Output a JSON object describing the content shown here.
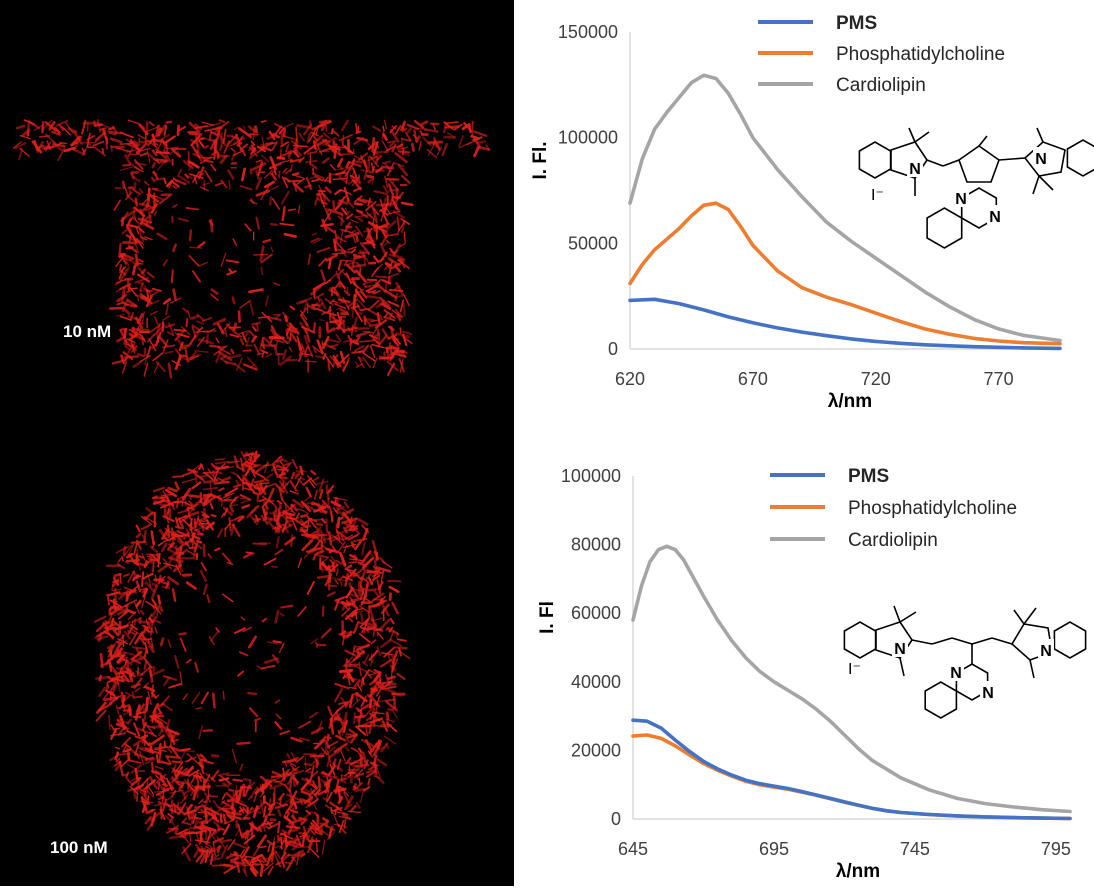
{
  "micrographs": [
    {
      "label": "10 nM"
    },
    {
      "label": "100 nM"
    }
  ],
  "colors": {
    "PMS": "#4472c4",
    "Phosphatidylcholine": "#ed7d31",
    "Cardiolipin": "#a5a5a5",
    "fluorescence": "#e0201c"
  },
  "chart_data": [
    {
      "type": "line",
      "xlabel": "λ/nm",
      "ylabel": "I. Fl.",
      "xlim": [
        620,
        795
      ],
      "ylim": [
        0,
        150000
      ],
      "xticks": [
        620,
        670,
        720,
        770
      ],
      "yticks": [
        0,
        50000,
        100000,
        150000
      ],
      "grid": false,
      "legend_position": "top-right",
      "series": [
        {
          "name": "PMS",
          "x": [
            620,
            630,
            640,
            650,
            660,
            670,
            680,
            690,
            700,
            710,
            720,
            730,
            740,
            750,
            760,
            770,
            780,
            795
          ],
          "y": [
            23000,
            23500,
            21500,
            18500,
            15200,
            12400,
            10000,
            8000,
            6300,
            4800,
            3600,
            2700,
            2000,
            1500,
            1100,
            800,
            500,
            300
          ]
        },
        {
          "name": "Phosphatidylcholine",
          "x": [
            620,
            625,
            630,
            635,
            640,
            645,
            650,
            655,
            660,
            665,
            670,
            680,
            690,
            700,
            710,
            720,
            730,
            740,
            750,
            760,
            770,
            780,
            795
          ],
          "y": [
            31000,
            40000,
            47000,
            52000,
            57000,
            63000,
            68000,
            69000,
            66000,
            58000,
            49000,
            37000,
            29000,
            24500,
            21000,
            17000,
            13000,
            9500,
            7000,
            5000,
            3800,
            3000,
            2500
          ]
        },
        {
          "name": "Cardiolipin",
          "x": [
            620,
            625,
            630,
            635,
            640,
            645,
            650,
            655,
            660,
            665,
            670,
            680,
            690,
            700,
            710,
            720,
            730,
            740,
            750,
            760,
            770,
            780,
            795
          ],
          "y": [
            69000,
            90000,
            104000,
            112000,
            119000,
            126000,
            129500,
            128000,
            121000,
            111000,
            100000,
            85000,
            72000,
            60000,
            51000,
            43000,
            35000,
            27000,
            20000,
            14000,
            9500,
            6500,
            4000
          ]
        }
      ]
    },
    {
      "type": "line",
      "xlabel": "λ/nm",
      "ylabel": "I. Fl",
      "xlim": [
        645,
        800
      ],
      "ylim": [
        0,
        100000
      ],
      "xticks": [
        645,
        695,
        745,
        795
      ],
      "yticks": [
        0,
        20000,
        40000,
        60000,
        80000,
        100000
      ],
      "grid": false,
      "legend_position": "top-right",
      "series": [
        {
          "name": "PMS",
          "x": [
            645,
            650,
            655,
            660,
            665,
            670,
            675,
            680,
            685,
            690,
            695,
            700,
            705,
            710,
            715,
            720,
            725,
            730,
            735,
            740,
            750,
            760,
            770,
            780,
            790,
            800
          ],
          "y": [
            28800,
            28500,
            26500,
            23000,
            19700,
            16800,
            14600,
            12800,
            11300,
            10300,
            9600,
            8900,
            8000,
            7000,
            6000,
            5000,
            4000,
            3100,
            2400,
            1900,
            1300,
            900,
            600,
            400,
            250,
            150
          ]
        },
        {
          "name": "Phosphatidylcholine",
          "x": [
            645,
            650,
            655,
            660,
            665,
            670,
            675,
            680,
            685,
            690,
            695,
            700,
            705,
            710,
            715,
            720,
            725,
            730,
            735,
            740,
            750,
            760,
            770,
            780,
            790,
            800
          ],
          "y": [
            24200,
            24500,
            23500,
            21300,
            18700,
            16200,
            14200,
            12500,
            11000,
            10000,
            9300,
            8700,
            7800,
            6900,
            5900,
            4900,
            4000,
            3100,
            2400,
            1900,
            1300,
            900,
            600,
            400,
            250,
            150
          ]
        },
        {
          "name": "Cardiolipin",
          "x": [
            645,
            648,
            651,
            654,
            657,
            660,
            663,
            666,
            670,
            675,
            680,
            685,
            690,
            695,
            700,
            705,
            710,
            715,
            720,
            725,
            730,
            740,
            750,
            760,
            770,
            780,
            790,
            800
          ],
          "y": [
            58000,
            68000,
            75000,
            78500,
            79500,
            78500,
            75500,
            71000,
            65000,
            58000,
            52000,
            47000,
            43000,
            40000,
            37500,
            35000,
            32000,
            28500,
            24500,
            20500,
            17000,
            12000,
            8500,
            6000,
            4500,
            3500,
            2700,
            2200
          ]
        }
      ]
    }
  ],
  "structures": [
    {
      "counterion": "I⁻",
      "atoms": [
        "N",
        "N",
        "N",
        "N"
      ]
    },
    {
      "counterion": "I⁻",
      "atoms": [
        "N",
        "N",
        "N",
        "N"
      ]
    }
  ]
}
